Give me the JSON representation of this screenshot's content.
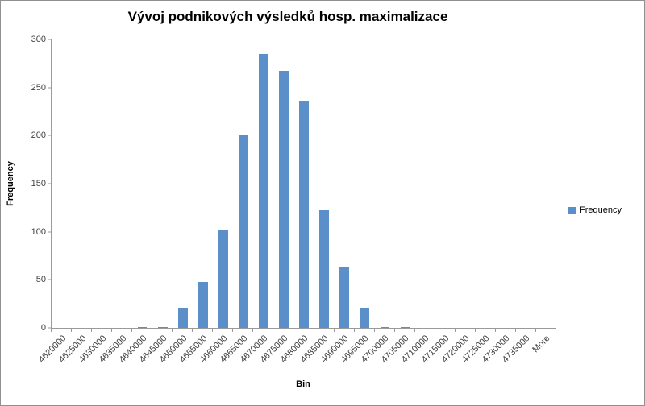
{
  "chart_data": {
    "type": "bar",
    "title": "Vývoj podnikových výsledků hosp. maximalizace",
    "xlabel": "Bin",
    "ylabel": "Frequency",
    "ylim": [
      0,
      300
    ],
    "ytick_step": 50,
    "grid": false,
    "legend_position": "right",
    "legend": [
      "Frequency"
    ],
    "bar_color": "#5b8fc9",
    "categories": [
      "4620000",
      "4625000",
      "4630000",
      "4635000",
      "4640000",
      "4645000",
      "4650000",
      "4655000",
      "4660000",
      "4665000",
      "4670000",
      "4675000",
      "4680000",
      "4685000",
      "4690000",
      "4695000",
      "4700000",
      "4705000",
      "4710000",
      "4715000",
      "4720000",
      "4725000",
      "4730000",
      "4735000",
      "More"
    ],
    "values": [
      0,
      0,
      0,
      0,
      1,
      1,
      21,
      48,
      101,
      200,
      285,
      267,
      236,
      122,
      63,
      21,
      1,
      1,
      0,
      0,
      0,
      0,
      0,
      0,
      0
    ]
  }
}
